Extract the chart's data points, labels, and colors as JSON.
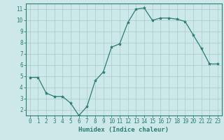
{
  "x": [
    0,
    1,
    2,
    3,
    4,
    5,
    6,
    7,
    8,
    9,
    10,
    11,
    12,
    13,
    14,
    15,
    16,
    17,
    18,
    19,
    20,
    21,
    22,
    23
  ],
  "y": [
    4.9,
    4.9,
    3.5,
    3.2,
    3.2,
    2.6,
    1.5,
    2.3,
    4.6,
    5.4,
    7.6,
    7.9,
    9.8,
    11.0,
    11.1,
    10.0,
    10.2,
    10.2,
    10.1,
    9.9,
    8.7,
    7.5,
    6.1,
    6.1
  ],
  "line_color": "#2e7d6e",
  "marker": "*",
  "marker_size": 3,
  "bg_color": "#cce8e8",
  "grid_color": "#afd0d0",
  "xlabel": "Humidex (Indice chaleur)",
  "xlim": [
    -0.5,
    23.5
  ],
  "ylim": [
    1.5,
    11.5
  ],
  "yticks": [
    2,
    3,
    4,
    5,
    6,
    7,
    8,
    9,
    10,
    11
  ],
  "xticks": [
    0,
    1,
    2,
    3,
    4,
    5,
    6,
    7,
    8,
    9,
    10,
    11,
    12,
    13,
    14,
    15,
    16,
    17,
    18,
    19,
    20,
    21,
    22,
    23
  ],
  "axis_color": "#2e7d6e",
  "tick_fontsize": 5.5,
  "label_fontsize": 6.5
}
